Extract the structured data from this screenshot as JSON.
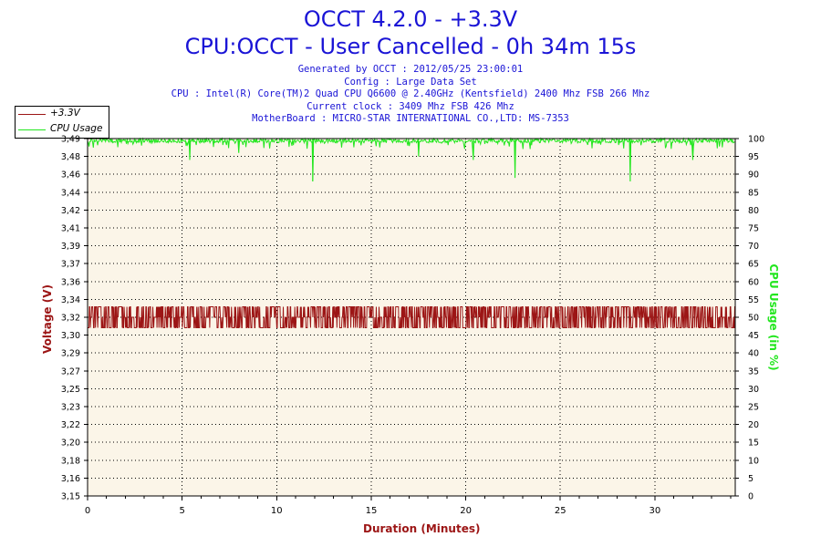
{
  "header": {
    "title": "OCCT 4.2.0 - +3.3V",
    "subtitle": "CPU:OCCT - User Cancelled - 0h 34m 15s",
    "info_lines": [
      "Generated by OCCT : 2012/05/25 23:00:01",
      "Config : Large Data Set",
      "CPU : Intel(R) Core(TM)2 Quad CPU Q6600 @ 2.40GHz (Kentsfield) 2400 Mhz FSB 266 Mhz",
      "Current clock : 3409 Mhz FSB 426 Mhz",
      "MotherBoard : MICRO-STAR INTERNATIONAL CO.,LTD: MS-7353"
    ]
  },
  "colors": {
    "title": "#1a14d6",
    "voltage": "#9c1515",
    "cpu": "#22e61e",
    "plot_bg": "#fbf5e8",
    "grid": "#000000"
  },
  "chart_data": {
    "type": "line",
    "title": "OCCT 4.2.0 - +3.3V",
    "subtitle": "CPU:OCCT - User Cancelled - 0h 34m 15s",
    "xlabel": "Duration (Minutes)",
    "ylabel": "Voltage (V)",
    "y2label": "CPU Usage (in %)",
    "xlim": [
      0,
      34.25
    ],
    "ylim": [
      3.15,
      3.49
    ],
    "y2lim": [
      0,
      100
    ],
    "x_ticks": [
      "0",
      "5",
      "10",
      "15",
      "20",
      "25",
      "30"
    ],
    "y_ticks": [
      "3,15",
      "3,16",
      "3,18",
      "3,20",
      "3,22",
      "3,23",
      "3,25",
      "3,27",
      "3,29",
      "3,30",
      "3,32",
      "3,34",
      "3,36",
      "3,37",
      "3,39",
      "3,41",
      "3,42",
      "3,44",
      "3,46",
      "3,48",
      "3,49"
    ],
    "y2_ticks": [
      "0",
      "5",
      "10",
      "15",
      "20",
      "25",
      "30",
      "35",
      "40",
      "45",
      "50",
      "55",
      "60",
      "65",
      "70",
      "75",
      "80",
      "85",
      "90",
      "95",
      "100"
    ],
    "grid": true,
    "legend_position": "top-left",
    "series": [
      {
        "name": "+3.3V",
        "axis": "left",
        "value_range": [
          3.31,
          3.33
        ],
        "typical": 3.32
      },
      {
        "name": "CPU Usage",
        "axis": "right",
        "typical": 99.5,
        "dips": [
          {
            "x": 5.4,
            "y": 94
          },
          {
            "x": 8.0,
            "y": 96
          },
          {
            "x": 11.9,
            "y": 88
          },
          {
            "x": 17.5,
            "y": 95
          },
          {
            "x": 20.4,
            "y": 94
          },
          {
            "x": 22.6,
            "y": 89
          },
          {
            "x": 28.7,
            "y": 88
          },
          {
            "x": 32.0,
            "y": 94
          }
        ]
      }
    ]
  }
}
